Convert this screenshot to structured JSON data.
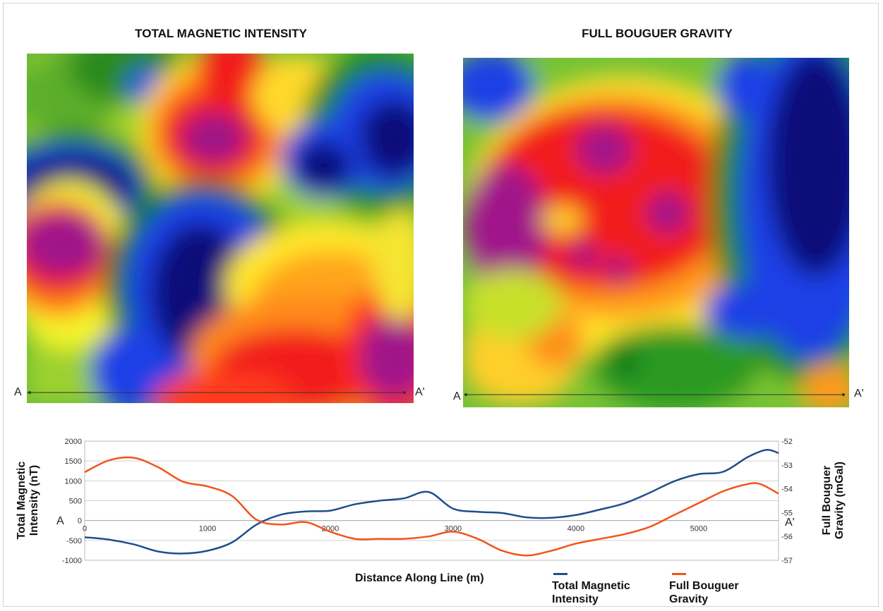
{
  "maps": {
    "left": {
      "title": "TOTAL MAGNETIC INTENSITY",
      "start_label": "A",
      "end_label": "A'"
    },
    "right": {
      "title": "FULL BOUGUER GRAVITY",
      "start_label": "A",
      "end_label": "A'"
    }
  },
  "colors": {
    "magnetic": "#1f4e8c",
    "gravity": "#f2541b",
    "grid": "#d0d0d0"
  },
  "chart_data": {
    "type": "line",
    "xlabel": "Distance Along Line (m)",
    "ylabel_left": "Total Magnetic Intensity (nT)",
    "ylabel_right": "Full Bouguer Gravity (mGal)",
    "xlim": [
      0,
      5650
    ],
    "ylim_left": [
      -1000,
      2000
    ],
    "ylim_right": [
      -57,
      -52
    ],
    "x_ticks": [
      "0",
      "1000",
      "2000",
      "3000",
      "4000",
      "5000"
    ],
    "y_left_ticks": [
      "2000",
      "1500",
      "1000",
      "500",
      "0",
      "-500",
      "-1000"
    ],
    "y_right_ticks": [
      "-52",
      "-53",
      "-54",
      "-55",
      "-56",
      "-57"
    ],
    "start_label": "A",
    "end_label": "A'",
    "grid": true,
    "legend_position": "bottom",
    "series": [
      {
        "name": "Total Magnetic Intensity",
        "axis": "left",
        "x": [
          0,
          200,
          400,
          600,
          800,
          1000,
          1200,
          1400,
          1600,
          1800,
          2000,
          2200,
          2400,
          2600,
          2800,
          3000,
          3200,
          3400,
          3600,
          3800,
          4000,
          4200,
          4400,
          4600,
          4800,
          5000,
          5200,
          5400,
          5550,
          5650
        ],
        "values": [
          -420,
          -480,
          -600,
          -780,
          -830,
          -760,
          -550,
          -100,
          150,
          230,
          250,
          410,
          500,
          560,
          720,
          300,
          220,
          190,
          80,
          70,
          140,
          280,
          440,
          700,
          990,
          1170,
          1230,
          1600,
          1780,
          1700
        ]
      },
      {
        "name": "Full Bouguer Gravity",
        "axis": "right",
        "x": [
          0,
          200,
          400,
          600,
          800,
          1000,
          1200,
          1400,
          1600,
          1800,
          2000,
          2200,
          2400,
          2600,
          2800,
          3000,
          3200,
          3400,
          3600,
          3800,
          4000,
          4200,
          4400,
          4600,
          4800,
          5000,
          5200,
          5400,
          5500,
          5650
        ],
        "values": [
          -53.3,
          -52.8,
          -52.7,
          -53.1,
          -53.7,
          -53.9,
          -54.3,
          -55.3,
          -55.5,
          -55.4,
          -55.8,
          -56.1,
          -56.1,
          -56.1,
          -56.0,
          -55.8,
          -56.1,
          -56.6,
          -56.8,
          -56.6,
          -56.3,
          -56.1,
          -55.9,
          -55.6,
          -55.1,
          -54.6,
          -54.1,
          -53.8,
          -53.8,
          -54.2
        ]
      }
    ]
  }
}
